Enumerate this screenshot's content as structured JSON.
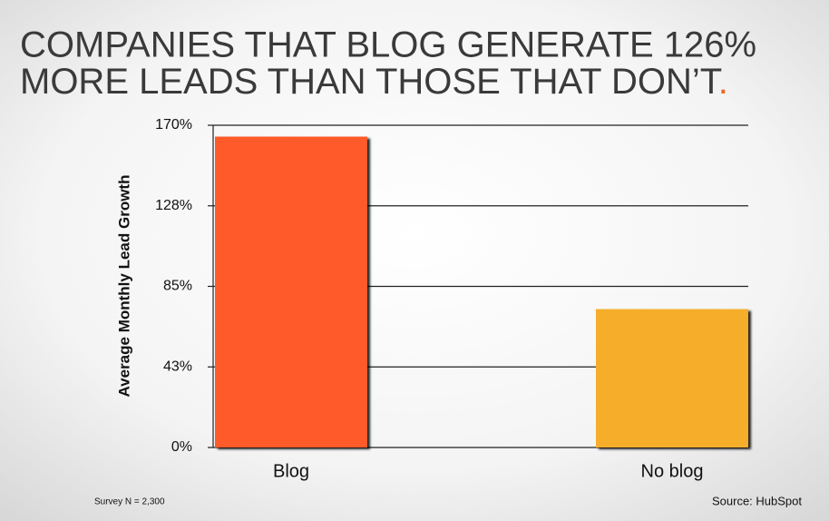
{
  "chart_data": {
    "type": "bar",
    "title_lines": [
      "COMPANIES THAT BLOG GENERATE 126%",
      "MORE LEADS THAN THOSE THAT DON’T"
    ],
    "title_period": ".",
    "y_label": "Average Monthly Lead Growth",
    "categories": [
      "Blog",
      "No blog"
    ],
    "values": [
      164,
      73
    ],
    "colors": [
      "#ff5a2a",
      "#f6ae2a"
    ],
    "ylim": [
      0,
      170
    ],
    "yticks": [
      {
        "value": 0,
        "label": "0%"
      },
      {
        "value": 42.5,
        "label": "43%"
      },
      {
        "value": 85,
        "label": "85%"
      },
      {
        "value": 127.5,
        "label": "128%"
      },
      {
        "value": 170,
        "label": "170%"
      }
    ],
    "grid": true,
    "note": "Survey N = 2,300",
    "source": "Source: HubSpot"
  }
}
